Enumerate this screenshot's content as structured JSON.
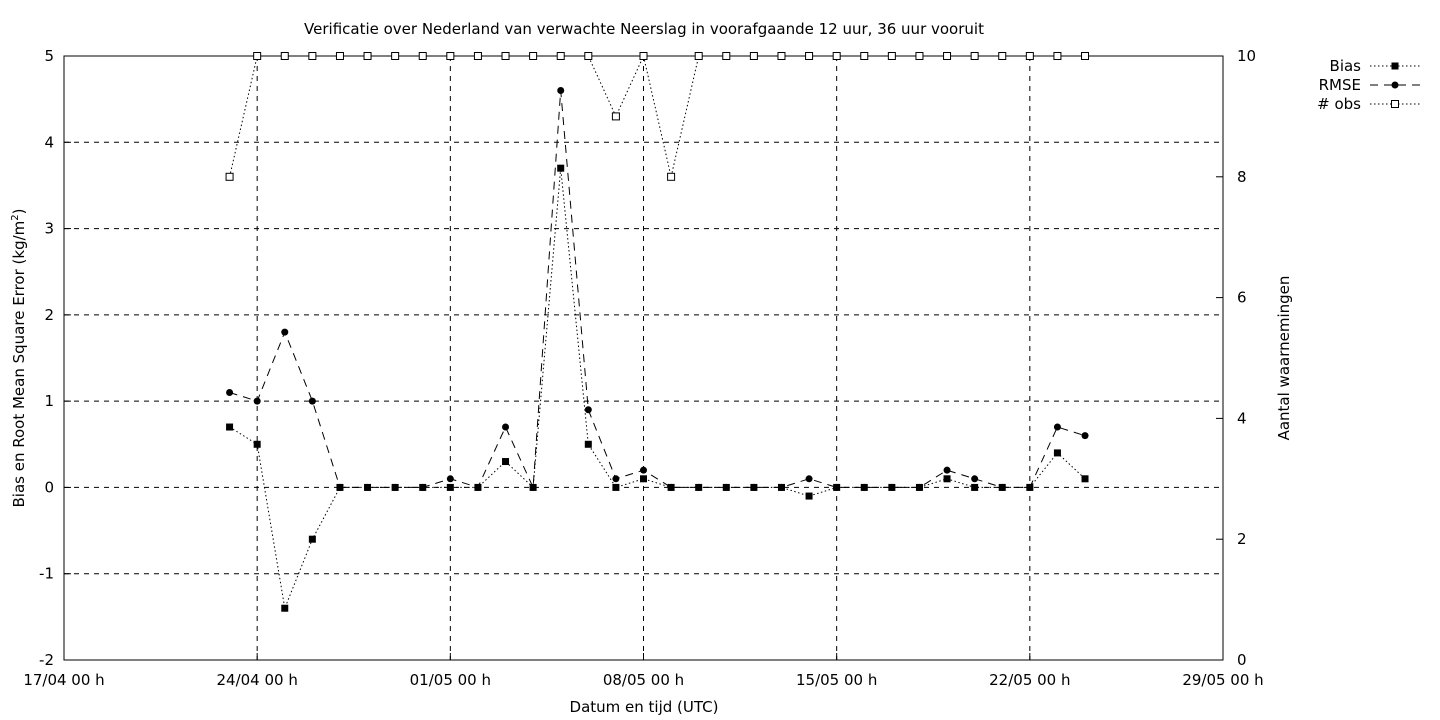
{
  "chart_data": {
    "type": "line",
    "title": "Verificatie over Nederland van verwachte Neerslag in voorafgaande 12 uur, 36 uur vooruit",
    "xlabel": "Datum en tijd (UTC)",
    "ylabel_left_main": "Bias en Root Mean Square Error (kg/m",
    "ylabel_left_sup": "2",
    "ylabel_left_end": ")",
    "ylabel_right": "Aantal waarnemingen",
    "x_start_day": "17/04",
    "x_range_days": [
      0,
      42
    ],
    "x_ticks": [
      {
        "day": 0,
        "label": "17/04 00 h"
      },
      {
        "day": 7,
        "label": "24/04 00 h"
      },
      {
        "day": 14,
        "label": "01/05 00 h"
      },
      {
        "day": 21,
        "label": "08/05 00 h"
      },
      {
        "day": 28,
        "label": "15/05 00 h"
      },
      {
        "day": 35,
        "label": "22/05 00 h"
      },
      {
        "day": 42,
        "label": "29/05 00 h"
      }
    ],
    "ylim_left": [
      -2,
      5
    ],
    "y_ticks_left": [
      "-2",
      "-1",
      "0",
      "1",
      "2",
      "3",
      "4",
      "5"
    ],
    "ylim_right": [
      0,
      10
    ],
    "y_ticks_right": [
      "0",
      "2",
      "4",
      "6",
      "8",
      "10"
    ],
    "grid": true,
    "legend_position": "top-right-outside",
    "series": [
      {
        "name": "Bias",
        "axis": "left",
        "marker": "filled-square",
        "dash": "dotted",
        "x": [
          6,
          7,
          8,
          9,
          10,
          11,
          12,
          13,
          14,
          15,
          16,
          17,
          18,
          19,
          20,
          21,
          22,
          23,
          24,
          25,
          26,
          27,
          28,
          29,
          30,
          31,
          32,
          33,
          34,
          35,
          36,
          37
        ],
        "y": [
          0.7,
          0.5,
          -1.4,
          -0.6,
          0,
          0,
          0,
          0,
          0,
          0,
          0.3,
          0,
          3.7,
          0.5,
          0,
          0.1,
          0,
          0,
          0,
          0,
          0,
          -0.1,
          0,
          0,
          0,
          0,
          0.1,
          0,
          0,
          0,
          0.4,
          0.1
        ]
      },
      {
        "name": "RMSE",
        "axis": "left",
        "marker": "filled-circle",
        "dash": "dashed",
        "x": [
          6,
          7,
          8,
          9,
          10,
          11,
          12,
          13,
          14,
          15,
          16,
          17,
          18,
          19,
          20,
          21,
          22,
          23,
          24,
          25,
          26,
          27,
          28,
          29,
          30,
          31,
          32,
          33,
          34,
          35,
          36,
          37
        ],
        "y": [
          1.1,
          1.0,
          1.8,
          1.0,
          0,
          0,
          0,
          0,
          0.1,
          0,
          0.7,
          0,
          4.6,
          0.9,
          0.1,
          0.2,
          0,
          0,
          0,
          0,
          0,
          0.1,
          0,
          0,
          0,
          0,
          0.2,
          0.1,
          0,
          0,
          0.7,
          0.6
        ]
      },
      {
        "name": "# obs",
        "axis": "right",
        "marker": "open-square",
        "dash": "dotted",
        "x": [
          6,
          7,
          8,
          9,
          10,
          11,
          12,
          13,
          14,
          15,
          16,
          17,
          18,
          19,
          20,
          21,
          22,
          23,
          24,
          25,
          26,
          27,
          28,
          29,
          30,
          31,
          32,
          33,
          34,
          35,
          36,
          37
        ],
        "y": [
          8,
          10,
          10,
          10,
          10,
          10,
          10,
          10,
          10,
          10,
          10,
          10,
          10,
          10,
          9,
          10,
          8,
          10,
          10,
          10,
          10,
          10,
          10,
          10,
          10,
          10,
          10,
          10,
          10,
          10,
          10,
          10
        ]
      }
    ]
  }
}
